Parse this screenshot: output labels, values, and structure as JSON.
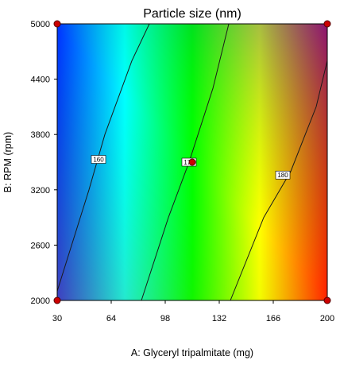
{
  "chart_data": {
    "type": "heatmap",
    "title": "Particle size  (nm)",
    "xlabel": "A: Glyceryl tripalmitate (mg)",
    "ylabel": "B: RPM (rpm)",
    "xlim": [
      30,
      200
    ],
    "ylim": [
      2000,
      5000
    ],
    "x_ticks": [
      "30",
      "64",
      "98",
      "132",
      "166",
      "200"
    ],
    "y_ticks": [
      "2000",
      "2600",
      "3200",
      "3800",
      "4400",
      "5000"
    ],
    "colormap": [
      "#0033ff",
      "#00ffff",
      "#00ff00",
      "#ffff00",
      "#ff2200"
    ],
    "contours": [
      {
        "level_label": "160",
        "points": [
          [
            30,
            2100
          ],
          [
            50,
            3200
          ],
          [
            60,
            3800
          ],
          [
            77,
            4600
          ],
          [
            88,
            5000
          ]
        ],
        "label_at": [
          56,
          3530
        ]
      },
      {
        "level_label": "170",
        "points": [
          [
            83,
            2000
          ],
          [
            100,
            2900
          ],
          [
            113,
            3500
          ],
          [
            128,
            4300
          ],
          [
            138,
            5000
          ]
        ],
        "label_at": [
          113,
          3500
        ]
      },
      {
        "level_label": "180",
        "points": [
          [
            139,
            2000
          ],
          [
            160,
            2900
          ],
          [
            177,
            3400
          ],
          [
            193,
            4100
          ],
          [
            200,
            4600
          ]
        ],
        "label_at": [
          172,
          3360
        ]
      }
    ],
    "design_points": [
      [
        30,
        2000
      ],
      [
        30,
        5000
      ],
      [
        115,
        3500
      ],
      [
        200,
        2000
      ],
      [
        200,
        5000
      ]
    ]
  }
}
